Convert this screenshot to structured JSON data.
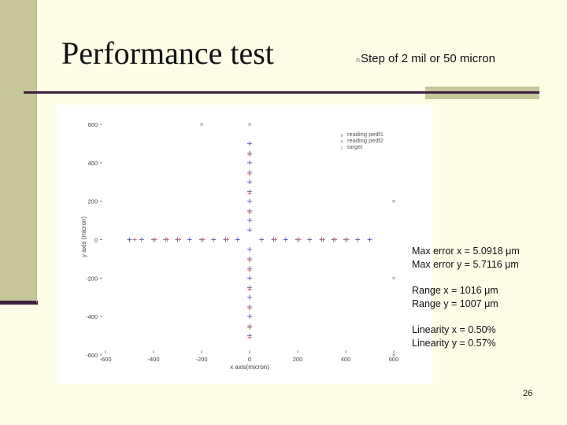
{
  "slide": {
    "title": "Performance test",
    "subtitle_bullet": "n",
    "subtitle": "Step of 2 mil or 50 micron",
    "page_number": "26"
  },
  "stats": {
    "max_error_x": "Max error x = 5.0918 μm",
    "max_error_y": "Max error y = 5.7116 μm",
    "range_x": "Range x = 1016 μm",
    "range_y": "Range y = 1007 μm",
    "linearity_x": "Linearity x = 0.50%",
    "linearity_y": "Linearity y = 0.57%"
  },
  "colors": {
    "series1": "#6a6ab4",
    "series2": "#c87070",
    "target": "#9a9a9a",
    "axis_text": "#444444",
    "accent": "#3d1f3d"
  },
  "chart_data": {
    "type": "scatter",
    "xlabel": "x axis(micron)",
    "ylabel": "y axis (micron)",
    "xlim": [
      -600,
      600
    ],
    "ylim": [
      -600,
      600
    ],
    "xticks": [
      "-600",
      "-400",
      "-200",
      "0",
      "200",
      "400",
      "600"
    ],
    "yticks": [
      "600",
      "400",
      "200",
      "0",
      "-200",
      "-400",
      "-600"
    ],
    "grid": false,
    "legend_position": "top-right",
    "series": [
      {
        "name": "reading pedf1",
        "marker": "+",
        "x_points": [
          [
            -500,
            0
          ],
          [
            -450,
            0
          ],
          [
            -400,
            0
          ],
          [
            -350,
            0
          ],
          [
            -300,
            0
          ],
          [
            -250,
            0
          ],
          [
            -200,
            0
          ],
          [
            -150,
            0
          ],
          [
            -100,
            0
          ],
          [
            -50,
            0
          ],
          [
            50,
            0
          ],
          [
            100,
            0
          ],
          [
            150,
            0
          ],
          [
            200,
            0
          ],
          [
            250,
            0
          ],
          [
            300,
            0
          ],
          [
            350,
            0
          ],
          [
            400,
            0
          ],
          [
            450,
            0
          ],
          [
            500,
            0
          ]
        ],
        "y_points": [
          [
            0,
            500
          ],
          [
            0,
            450
          ],
          [
            0,
            400
          ],
          [
            0,
            350
          ],
          [
            0,
            300
          ],
          [
            0,
            250
          ],
          [
            0,
            200
          ],
          [
            0,
            150
          ],
          [
            0,
            100
          ],
          [
            0,
            50
          ],
          [
            0,
            -50
          ],
          [
            0,
            -100
          ],
          [
            0,
            -150
          ],
          [
            0,
            -200
          ],
          [
            0,
            -250
          ],
          [
            0,
            -300
          ],
          [
            0,
            -350
          ],
          [
            0,
            -400
          ],
          [
            0,
            -450
          ],
          [
            0,
            -500
          ]
        ]
      },
      {
        "name": "reading pedf2",
        "marker": "+",
        "x_points": [
          [
            -485,
            0
          ],
          [
            -400,
            0
          ],
          [
            -350,
            0
          ],
          [
            -300,
            0
          ],
          [
            -200,
            0
          ],
          [
            -100,
            0
          ],
          [
            100,
            0
          ],
          [
            200,
            0
          ],
          [
            300,
            0
          ],
          [
            350,
            0
          ],
          [
            400,
            0
          ]
        ],
        "y_points": [
          [
            0,
            450
          ],
          [
            0,
            350
          ],
          [
            0,
            250
          ],
          [
            0,
            150
          ],
          [
            0,
            -100
          ],
          [
            0,
            -150
          ],
          [
            0,
            -250
          ],
          [
            0,
            -350
          ],
          [
            0,
            -450
          ],
          [
            0,
            -500
          ]
        ]
      },
      {
        "name": "target",
        "marker": "x",
        "points": [
          [
            -200,
            600
          ],
          [
            0,
            600
          ],
          [
            600,
            200
          ],
          [
            600,
            -200
          ],
          [
            600,
            -600
          ]
        ]
      }
    ]
  }
}
